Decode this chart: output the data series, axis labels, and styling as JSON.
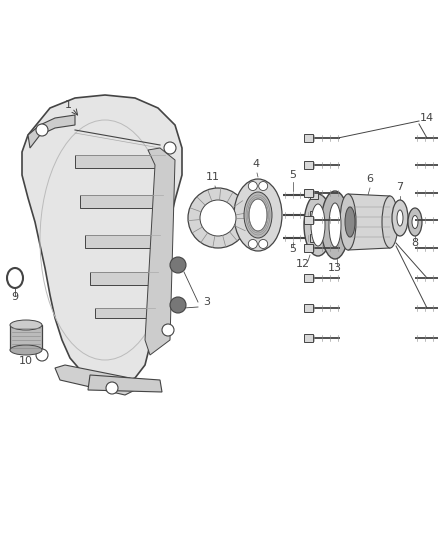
{
  "bg_color": "#ffffff",
  "fig_width": 4.38,
  "fig_height": 5.33,
  "dpi": 100,
  "line_color": "#444444",
  "light_gray": "#aaaaaa",
  "mid_gray": "#888888",
  "dark_gray": "#333333",
  "part_fill": "#d8d8d8",
  "part_fill2": "#c0c0c0",
  "white": "#ffffff"
}
